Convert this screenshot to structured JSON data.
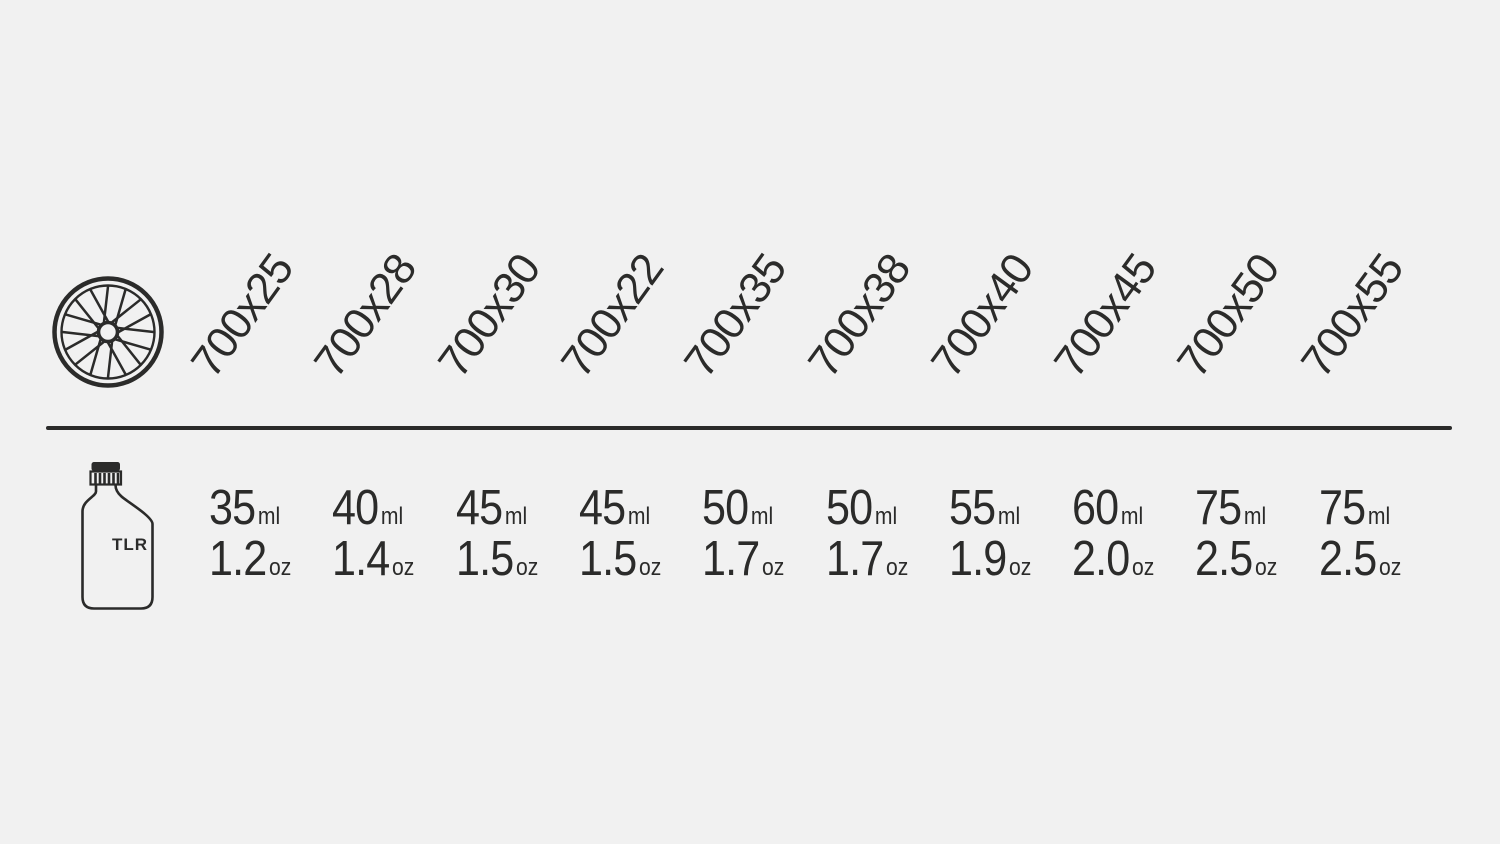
{
  "page": {
    "background_color": "#f1f1f1",
    "ink_color": "#2b2b2a"
  },
  "bottle": {
    "label": "TLR"
  },
  "chart_data": {
    "type": "table",
    "columns": [
      "700x25",
      "700x28",
      "700x30",
      "700x22",
      "700x35",
      "700x38",
      "700x40",
      "700x45",
      "700x50",
      "700x55"
    ],
    "rows": [
      {
        "unit": "ml",
        "values": [
          "35",
          "40",
          "45",
          "45",
          "50",
          "50",
          "55",
          "60",
          "75",
          "75"
        ]
      },
      {
        "unit": "oz",
        "values": [
          "1.2",
          "1.4",
          "1.5",
          "1.5",
          "1.7",
          "1.7",
          "1.9",
          "2.0",
          "2.5",
          "2.5"
        ]
      }
    ],
    "layout": {
      "header_rotation_deg": -54,
      "column_axis_icon": "bicycle-wheel",
      "row_axis_icon": "sealant-bottle",
      "grid": "single horizontal divider"
    }
  }
}
